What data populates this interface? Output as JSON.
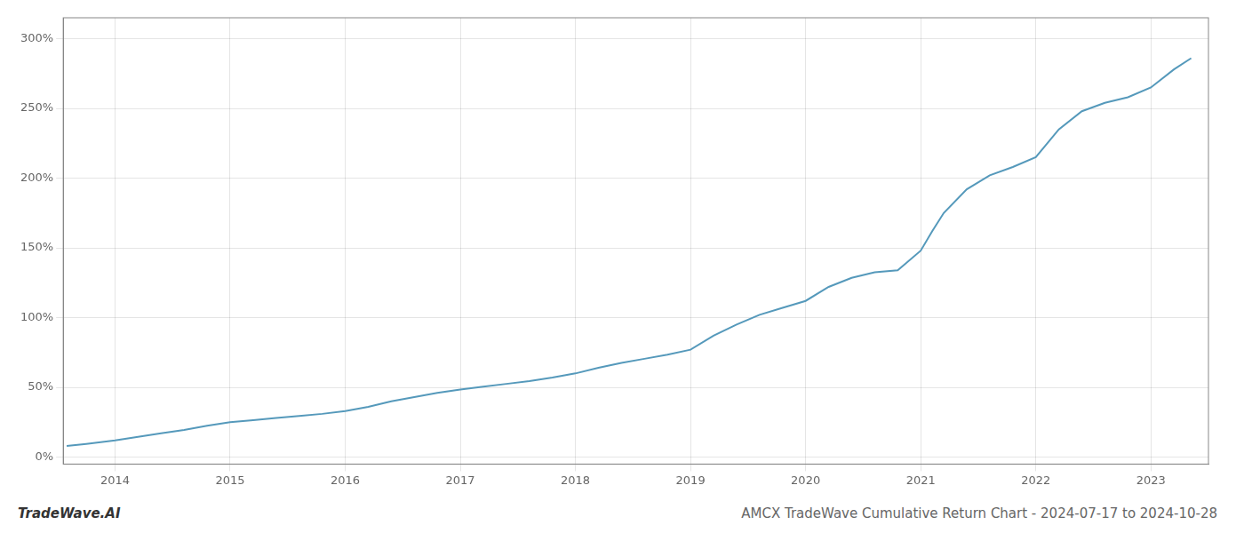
{
  "chart_data": {
    "type": "line",
    "title": "AMCX TradeWave Cumulative Return Chart - 2024-07-17 to 2024-10-28",
    "annotations": [
      "TradeWave.AI"
    ],
    "color": "#5599bb",
    "grid": true,
    "xlim": [
      2013.55,
      2023.5
    ],
    "xticks": [
      2014,
      2015,
      2016,
      2017,
      2018,
      2019,
      2020,
      2021,
      2022,
      2023
    ],
    "ylim": [
      -5,
      315
    ],
    "yticks": [
      {
        "value": 0,
        "label": "0%"
      },
      {
        "value": 50,
        "label": "50%"
      },
      {
        "value": 100,
        "label": "100%"
      },
      {
        "value": 150,
        "label": "150%"
      },
      {
        "value": 200,
        "label": "200%"
      },
      {
        "value": 250,
        "label": "250%"
      },
      {
        "value": 300,
        "label": "300%"
      }
    ],
    "x": [
      2013.58,
      2013.75,
      2014.0,
      2014.2,
      2014.4,
      2014.6,
      2014.8,
      2015.0,
      2015.2,
      2015.4,
      2015.6,
      2015.8,
      2016.0,
      2016.2,
      2016.4,
      2016.6,
      2016.8,
      2017.0,
      2017.2,
      2017.4,
      2017.6,
      2017.8,
      2018.0,
      2018.2,
      2018.4,
      2018.6,
      2018.8,
      2019.0,
      2019.2,
      2019.4,
      2019.6,
      2019.8,
      2020.0,
      2020.2,
      2020.4,
      2020.6,
      2020.8,
      2021.0,
      2021.1,
      2021.2,
      2021.4,
      2021.6,
      2021.8,
      2022.0,
      2022.2,
      2022.4,
      2022.6,
      2022.8,
      2023.0,
      2023.2,
      2023.35
    ],
    "values": [
      8.0,
      9.5,
      12.0,
      14.5,
      17.0,
      19.5,
      22.5,
      25.0,
      26.5,
      28.0,
      29.5,
      31.0,
      33.0,
      36.0,
      40.0,
      43.0,
      46.0,
      48.5,
      50.5,
      52.5,
      54.5,
      57.0,
      60.0,
      64.0,
      67.5,
      70.5,
      73.5,
      77.0,
      87.0,
      95.0,
      102.0,
      107.0,
      112.0,
      122.0,
      128.5,
      132.5,
      134.0,
      148.0,
      162.0,
      175.0,
      192.0,
      202.0,
      208.0,
      215.0,
      235.0,
      248.0,
      254.0,
      258.0,
      265.0,
      278.0,
      286.0
    ]
  }
}
